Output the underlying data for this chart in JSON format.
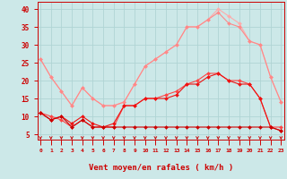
{
  "background_color": "#cce8e8",
  "grid_color": "#b0d4d4",
  "text_color": "#cc0000",
  "xlabel": "Vent moyen/en rafales ( km/h )",
  "x_ticks": [
    0,
    1,
    2,
    3,
    4,
    5,
    6,
    7,
    8,
    9,
    10,
    11,
    12,
    13,
    14,
    15,
    16,
    17,
    18,
    19,
    20,
    21,
    22,
    23
  ],
  "y_ticks": [
    5,
    10,
    15,
    20,
    25,
    30,
    35,
    40
  ],
  "ylim": [
    3.5,
    42
  ],
  "xlim": [
    -0.3,
    23.3
  ],
  "series": [
    {
      "color": "#ffaaaa",
      "linewidth": 0.8,
      "marker": "D",
      "markersize": 2.0,
      "y": [
        26,
        21,
        17,
        13,
        18,
        15,
        13,
        13,
        14,
        19,
        24,
        26,
        28,
        30,
        35,
        35,
        37,
        40,
        38,
        36,
        31,
        30,
        21,
        14
      ]
    },
    {
      "color": "#ff8888",
      "linewidth": 0.8,
      "marker": "D",
      "markersize": 2.0,
      "y": [
        26,
        21,
        17,
        13,
        18,
        15,
        13,
        13,
        14,
        19,
        24,
        26,
        28,
        30,
        35,
        35,
        37,
        39,
        36,
        35,
        31,
        30,
        21,
        14
      ]
    },
    {
      "color": "#ff4444",
      "linewidth": 0.8,
      "marker": "D",
      "markersize": 2.0,
      "y": [
        11,
        10,
        9,
        7,
        9,
        7,
        7,
        7,
        13,
        13,
        15,
        15,
        16,
        17,
        19,
        20,
        22,
        22,
        20,
        20,
        19,
        15,
        7,
        7
      ]
    },
    {
      "color": "#ee1111",
      "linewidth": 0.8,
      "marker": "D",
      "markersize": 2.0,
      "y": [
        11,
        9,
        10,
        8,
        10,
        8,
        7,
        8,
        13,
        13,
        15,
        15,
        15,
        16,
        19,
        19,
        21,
        22,
        20,
        19,
        19,
        15,
        7,
        6
      ]
    },
    {
      "color": "#cc0000",
      "linewidth": 0.8,
      "marker": "D",
      "markersize": 2.0,
      "y": [
        11,
        9,
        10,
        7,
        9,
        7,
        7,
        7,
        7,
        7,
        7,
        7,
        7,
        7,
        7,
        7,
        7,
        7,
        7,
        7,
        7,
        7,
        7,
        6
      ]
    }
  ]
}
